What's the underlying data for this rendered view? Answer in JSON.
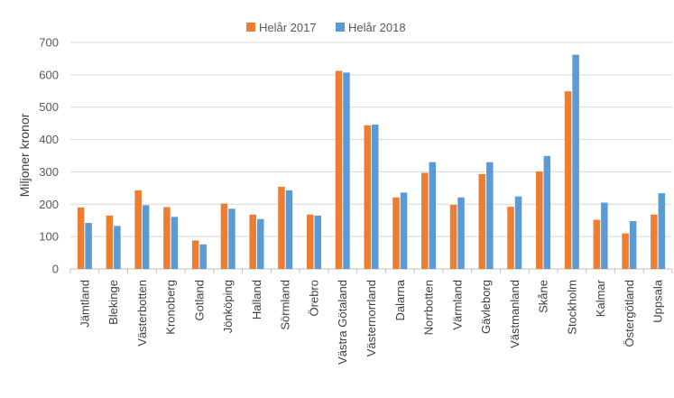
{
  "chart_data": {
    "type": "bar",
    "title": "",
    "xlabel": "",
    "ylabel": "Miljoner kronor",
    "ylim": [
      0,
      700
    ],
    "yticks": [
      0,
      100,
      200,
      300,
      400,
      500,
      600,
      700
    ],
    "grid": true,
    "legend_position": "top-center",
    "categories": [
      "Jämtland",
      "Blekinge",
      "Västerbotten",
      "Kronoberg",
      "Gotland",
      "Jönköping",
      "Halland",
      "Sörmland",
      "Örebro",
      "Västra Götaland",
      "Västernorrland",
      "Dalarna",
      "Norrbotten",
      "Värmland",
      "Gävleborg",
      "Västmanland",
      "Skåne",
      "Stockholm",
      "Kalmar",
      "Östergötland",
      "Uppsala"
    ],
    "series": [
      {
        "name": "Helår 2017",
        "color": "#ED7D31",
        "values": [
          190,
          165,
          243,
          191,
          88,
          202,
          168,
          254,
          168,
          612,
          444,
          221,
          297,
          198,
          293,
          192,
          301,
          549,
          152,
          110,
          168
        ]
      },
      {
        "name": "Helår 2018",
        "color": "#5B9BD5",
        "values": [
          142,
          133,
          197,
          161,
          76,
          186,
          154,
          243,
          165,
          607,
          446,
          236,
          330,
          221,
          330,
          224,
          349,
          662,
          205,
          148,
          234
        ]
      }
    ]
  }
}
